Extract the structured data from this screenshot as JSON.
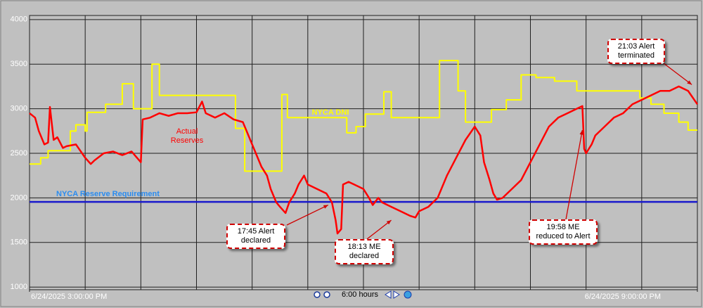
{
  "chart_data": {
    "type": "line",
    "xlim": [
      0,
      360
    ],
    "xticks": [
      {
        "value": 0,
        "label": "6/24/2025 3:00:00 PM"
      },
      {
        "value": 360,
        "label": "6/24/2025 9:00:00 PM"
      }
    ],
    "xgrid": [
      0,
      30,
      60,
      90,
      120,
      150,
      180,
      210,
      240,
      270,
      300,
      330,
      360
    ],
    "ylim": [
      970,
      4046
    ],
    "yticks": [
      1000,
      1500,
      2000,
      2500,
      3000,
      3500,
      4000
    ],
    "grid": true,
    "time_span": "6:00 hours",
    "series": [
      {
        "name": "NYCA DNI",
        "color": "#ffff00",
        "step": true,
        "x": [
          0,
          6,
          10,
          22,
          25,
          30,
          31,
          41,
          50,
          56,
          66,
          70,
          111,
          116,
          136,
          139,
          171,
          176,
          181,
          191,
          195,
          221,
          231,
          235,
          249,
          257,
          265,
          273,
          283,
          295,
          329,
          335,
          342,
          350,
          355,
          360
        ],
        "values": [
          2380,
          2450,
          2530,
          2750,
          2820,
          2750,
          2960,
          3050,
          3280,
          3000,
          3500,
          3150,
          2780,
          2300,
          3160,
          2900,
          2730,
          2800,
          2940,
          3190,
          2900,
          3540,
          3200,
          2850,
          2990,
          3100,
          3380,
          3350,
          3310,
          3200,
          3120,
          3050,
          2950,
          2850,
          2760,
          2760
        ]
      },
      {
        "name": "NYCA Reserve Requirement",
        "color": "#1a1acc",
        "label_color": "#2a8cf0",
        "x": [
          0,
          360
        ],
        "values": [
          1955,
          1955
        ]
      },
      {
        "name": "Actual Reserves",
        "color": "#ff0000",
        "x": [
          0,
          3,
          5,
          8,
          10,
          11,
          13,
          15,
          18,
          20,
          25,
          30,
          33,
          35,
          40,
          45,
          50,
          55,
          60,
          61,
          65,
          70,
          75,
          80,
          85,
          90,
          93,
          95,
          100,
          105,
          110,
          115,
          118,
          120,
          123,
          125,
          128,
          130,
          133,
          135,
          138,
          140,
          143,
          145,
          148,
          150,
          155,
          160,
          163,
          165,
          166,
          168,
          169,
          172,
          175,
          180,
          183,
          185,
          188,
          190,
          195,
          200,
          205,
          208,
          210,
          215,
          220,
          225,
          230,
          235,
          240,
          243,
          245,
          248,
          250,
          252,
          255,
          260,
          265,
          270,
          275,
          280,
          285,
          290,
          295,
          298,
          299,
          300,
          303,
          305,
          310,
          315,
          320,
          325,
          330,
          335,
          340,
          345,
          350,
          355,
          360
        ],
        "values": [
          2950,
          2900,
          2750,
          2600,
          2620,
          3020,
          2650,
          2680,
          2560,
          2580,
          2600,
          2450,
          2380,
          2420,
          2500,
          2520,
          2480,
          2520,
          2400,
          2880,
          2900,
          2950,
          2920,
          2950,
          2950,
          2960,
          3080,
          2950,
          2900,
          2950,
          2880,
          2850,
          2700,
          2600,
          2450,
          2350,
          2250,
          2100,
          1950,
          1900,
          1830,
          1950,
          2050,
          2150,
          2250,
          2150,
          2100,
          2050,
          1950,
          1750,
          1600,
          1650,
          2150,
          2180,
          2150,
          2100,
          2000,
          1920,
          2000,
          1950,
          1900,
          1850,
          1800,
          1780,
          1850,
          1900,
          2000,
          2250,
          2450,
          2650,
          2800,
          2700,
          2400,
          2200,
          2050,
          1980,
          2000,
          2100,
          2200,
          2400,
          2600,
          2800,
          2900,
          2950,
          3000,
          3030,
          2550,
          2500,
          2600,
          2700,
          2800,
          2900,
          2950,
          3050,
          3100,
          3150,
          3200,
          3200,
          3250,
          3200,
          3050
        ]
      }
    ],
    "annotations": [
      {
        "text": "17:45 Alert declared",
        "x": 161,
        "value": 1920
      },
      {
        "text": "18:13 ME declared",
        "x": 195,
        "value": 1750
      },
      {
        "text": "19:58 ME reduced to Alert",
        "x": 298,
        "value": 2760
      },
      {
        "text": "21:03 Alert terminated",
        "x": 357,
        "value": 3270
      }
    ]
  }
}
